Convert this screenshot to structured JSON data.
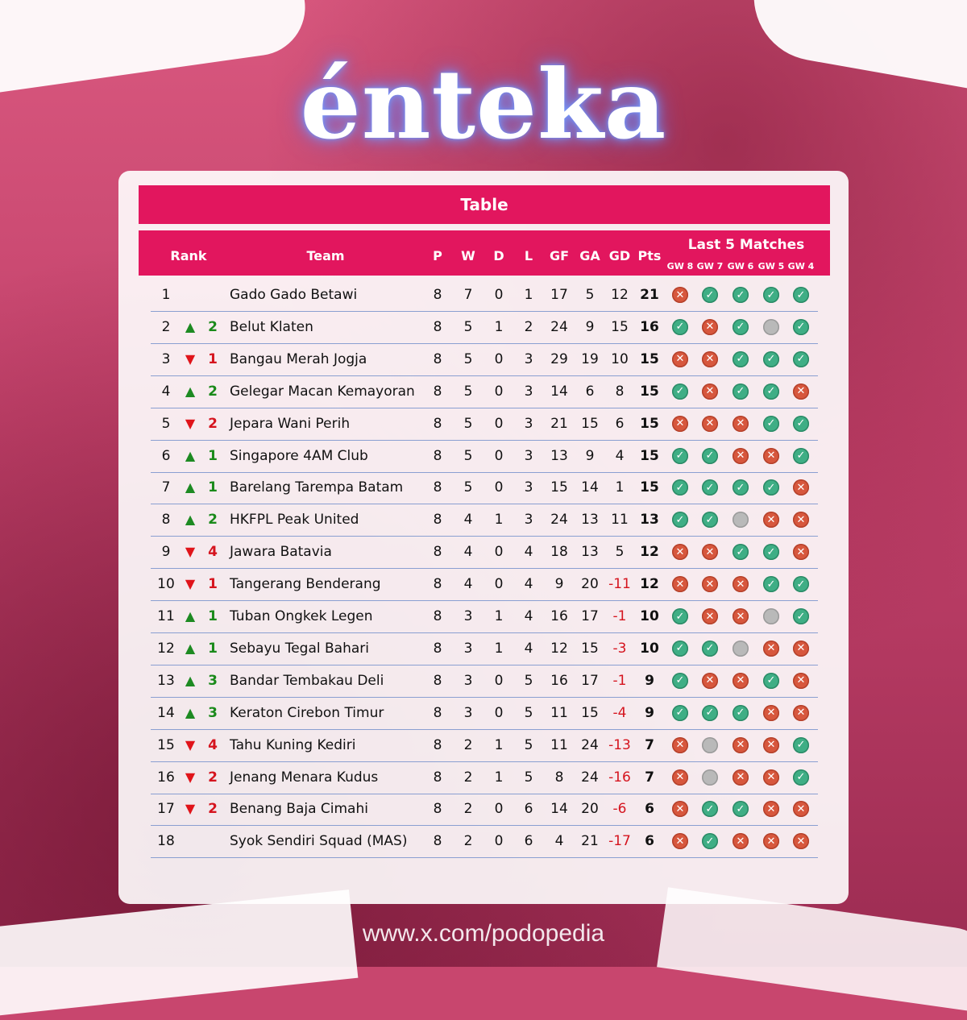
{
  "brand": {
    "logo_text": "énteka",
    "footer_url": "www.x.com/podopedia"
  },
  "colors": {
    "accent": "#e2165e",
    "win": "#3fae85",
    "loss": "#d7573d",
    "draw": "#b9b9b9",
    "up": "#1d8a22",
    "down": "#e0141a"
  },
  "table": {
    "title": "Table",
    "headers": {
      "rank": "Rank",
      "team": "Team",
      "p": "P",
      "w": "W",
      "d": "D",
      "l": "L",
      "gf": "GF",
      "ga": "GA",
      "gd": "GD",
      "pts": "Pts",
      "last5": "Last 5 Matches"
    },
    "gameweeks": [
      "GW 8",
      "GW 7",
      "GW 6",
      "GW 5",
      "GW 4"
    ],
    "rows": [
      {
        "rank": "1",
        "dir": "",
        "chg": "",
        "team": "Gado Gado Betawi",
        "p": "8",
        "w": "7",
        "d": "0",
        "l": "1",
        "gf": "17",
        "ga": "5",
        "gd": "12",
        "pts": "21",
        "last5": [
          "L",
          "W",
          "W",
          "W",
          "W"
        ]
      },
      {
        "rank": "2",
        "dir": "up",
        "chg": "2",
        "team": "Belut Klaten",
        "p": "8",
        "w": "5",
        "d": "1",
        "l": "2",
        "gf": "24",
        "ga": "9",
        "gd": "15",
        "pts": "16",
        "last5": [
          "W",
          "L",
          "W",
          "D",
          "W"
        ]
      },
      {
        "rank": "3",
        "dir": "down",
        "chg": "1",
        "team": "Bangau Merah Jogja",
        "p": "8",
        "w": "5",
        "d": "0",
        "l": "3",
        "gf": "29",
        "ga": "19",
        "gd": "10",
        "pts": "15",
        "last5": [
          "L",
          "L",
          "W",
          "W",
          "W"
        ]
      },
      {
        "rank": "4",
        "dir": "up",
        "chg": "2",
        "team": "Gelegar Macan Kemayoran",
        "p": "8",
        "w": "5",
        "d": "0",
        "l": "3",
        "gf": "14",
        "ga": "6",
        "gd": "8",
        "pts": "15",
        "last5": [
          "W",
          "L",
          "W",
          "W",
          "L"
        ]
      },
      {
        "rank": "5",
        "dir": "down",
        "chg": "2",
        "team": "Jepara Wani Perih",
        "p": "8",
        "w": "5",
        "d": "0",
        "l": "3",
        "gf": "21",
        "ga": "15",
        "gd": "6",
        "pts": "15",
        "last5": [
          "L",
          "L",
          "L",
          "W",
          "W"
        ]
      },
      {
        "rank": "6",
        "dir": "up",
        "chg": "1",
        "team": "Singapore 4AM Club",
        "p": "8",
        "w": "5",
        "d": "0",
        "l": "3",
        "gf": "13",
        "ga": "9",
        "gd": "4",
        "pts": "15",
        "last5": [
          "W",
          "W",
          "L",
          "L",
          "W"
        ]
      },
      {
        "rank": "7",
        "dir": "up",
        "chg": "1",
        "team": "Barelang Tarempa Batam",
        "p": "8",
        "w": "5",
        "d": "0",
        "l": "3",
        "gf": "15",
        "ga": "14",
        "gd": "1",
        "pts": "15",
        "last5": [
          "W",
          "W",
          "W",
          "W",
          "L"
        ]
      },
      {
        "rank": "8",
        "dir": "up",
        "chg": "2",
        "team": "HKFPL Peak United",
        "p": "8",
        "w": "4",
        "d": "1",
        "l": "3",
        "gf": "24",
        "ga": "13",
        "gd": "11",
        "pts": "13",
        "last5": [
          "W",
          "W",
          "D",
          "L",
          "L"
        ]
      },
      {
        "rank": "9",
        "dir": "down",
        "chg": "4",
        "team": "Jawara Batavia",
        "p": "8",
        "w": "4",
        "d": "0",
        "l": "4",
        "gf": "18",
        "ga": "13",
        "gd": "5",
        "pts": "12",
        "last5": [
          "L",
          "L",
          "W",
          "W",
          "L"
        ]
      },
      {
        "rank": "10",
        "dir": "down",
        "chg": "1",
        "team": "Tangerang Benderang",
        "p": "8",
        "w": "4",
        "d": "0",
        "l": "4",
        "gf": "9",
        "ga": "20",
        "gd": "-11",
        "pts": "12",
        "last5": [
          "L",
          "L",
          "L",
          "W",
          "W"
        ]
      },
      {
        "rank": "11",
        "dir": "up",
        "chg": "1",
        "team": "Tuban Ongkek Legen",
        "p": "8",
        "w": "3",
        "d": "1",
        "l": "4",
        "gf": "16",
        "ga": "17",
        "gd": "-1",
        "pts": "10",
        "last5": [
          "W",
          "L",
          "L",
          "D",
          "W"
        ]
      },
      {
        "rank": "12",
        "dir": "up",
        "chg": "1",
        "team": "Sebayu Tegal Bahari",
        "p": "8",
        "w": "3",
        "d": "1",
        "l": "4",
        "gf": "12",
        "ga": "15",
        "gd": "-3",
        "pts": "10",
        "last5": [
          "W",
          "W",
          "D",
          "L",
          "L"
        ]
      },
      {
        "rank": "13",
        "dir": "up",
        "chg": "3",
        "team": "Bandar Tembakau Deli",
        "p": "8",
        "w": "3",
        "d": "0",
        "l": "5",
        "gf": "16",
        "ga": "17",
        "gd": "-1",
        "pts": "9",
        "last5": [
          "W",
          "L",
          "L",
          "W",
          "L"
        ]
      },
      {
        "rank": "14",
        "dir": "up",
        "chg": "3",
        "team": "Keraton Cirebon Timur",
        "p": "8",
        "w": "3",
        "d": "0",
        "l": "5",
        "gf": "11",
        "ga": "15",
        "gd": "-4",
        "pts": "9",
        "last5": [
          "W",
          "W",
          "W",
          "L",
          "L"
        ]
      },
      {
        "rank": "15",
        "dir": "down",
        "chg": "4",
        "team": "Tahu Kuning Kediri",
        "p": "8",
        "w": "2",
        "d": "1",
        "l": "5",
        "gf": "11",
        "ga": "24",
        "gd": "-13",
        "pts": "7",
        "last5": [
          "L",
          "D",
          "L",
          "L",
          "W"
        ]
      },
      {
        "rank": "16",
        "dir": "down",
        "chg": "2",
        "team": "Jenang Menara Kudus",
        "p": "8",
        "w": "2",
        "d": "1",
        "l": "5",
        "gf": "8",
        "ga": "24",
        "gd": "-16",
        "pts": "7",
        "last5": [
          "L",
          "D",
          "L",
          "L",
          "W"
        ]
      },
      {
        "rank": "17",
        "dir": "down",
        "chg": "2",
        "team": "Benang Baja Cimahi",
        "p": "8",
        "w": "2",
        "d": "0",
        "l": "6",
        "gf": "14",
        "ga": "20",
        "gd": "-6",
        "pts": "6",
        "last5": [
          "L",
          "W",
          "W",
          "L",
          "L"
        ]
      },
      {
        "rank": "18",
        "dir": "",
        "chg": "",
        "team": "Syok Sendiri Squad (MAS)",
        "p": "8",
        "w": "2",
        "d": "0",
        "l": "6",
        "gf": "4",
        "ga": "21",
        "gd": "-17",
        "pts": "6",
        "last5": [
          "L",
          "W",
          "L",
          "L",
          "L"
        ]
      }
    ]
  }
}
